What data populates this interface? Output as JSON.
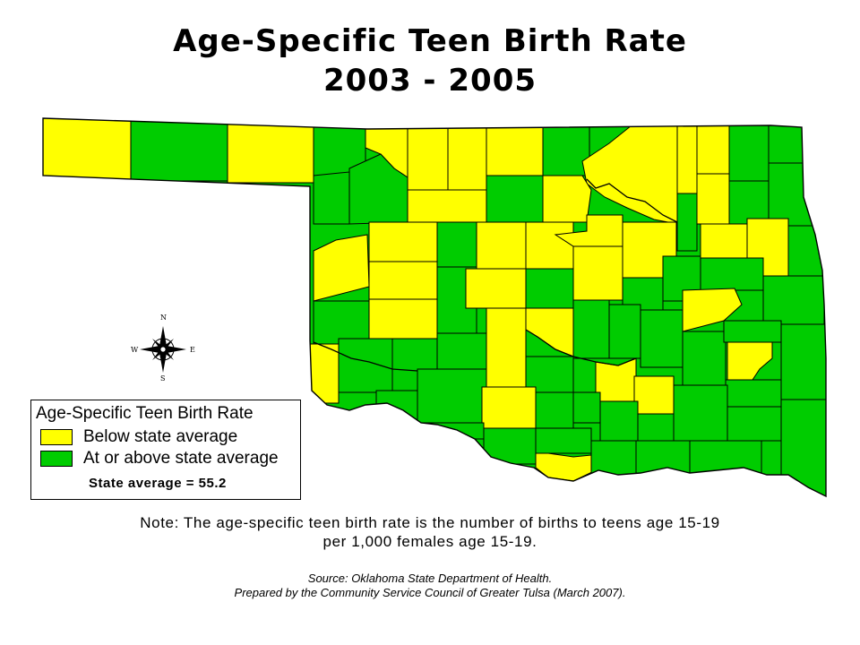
{
  "title": {
    "line1": "Age-Specific Teen Birth Rate",
    "line2": "2003 - 2005"
  },
  "colors": {
    "below": "#ffff00",
    "above": "#00cc00",
    "border": "#000000"
  },
  "compass": {
    "n": "N",
    "s": "S",
    "e": "E",
    "w": "W"
  },
  "legend": {
    "title": "Age-Specific Teen Birth Rate",
    "items": [
      {
        "label": "Below state average",
        "color": "#ffff00"
      },
      {
        "label": "At or above state average",
        "color": "#00cc00"
      }
    ],
    "state_average": "State average = 55.2"
  },
  "note": {
    "line1": "Note:  The age-specific teen birth rate is the number of births to teens age 15-19",
    "line2": "per 1,000 females age 15-19."
  },
  "source": {
    "line1": "Source:  Oklahoma State Department of Health.",
    "line2": "Prepared by the Community Service Council of Greater Tulsa (March 2007)."
  }
}
